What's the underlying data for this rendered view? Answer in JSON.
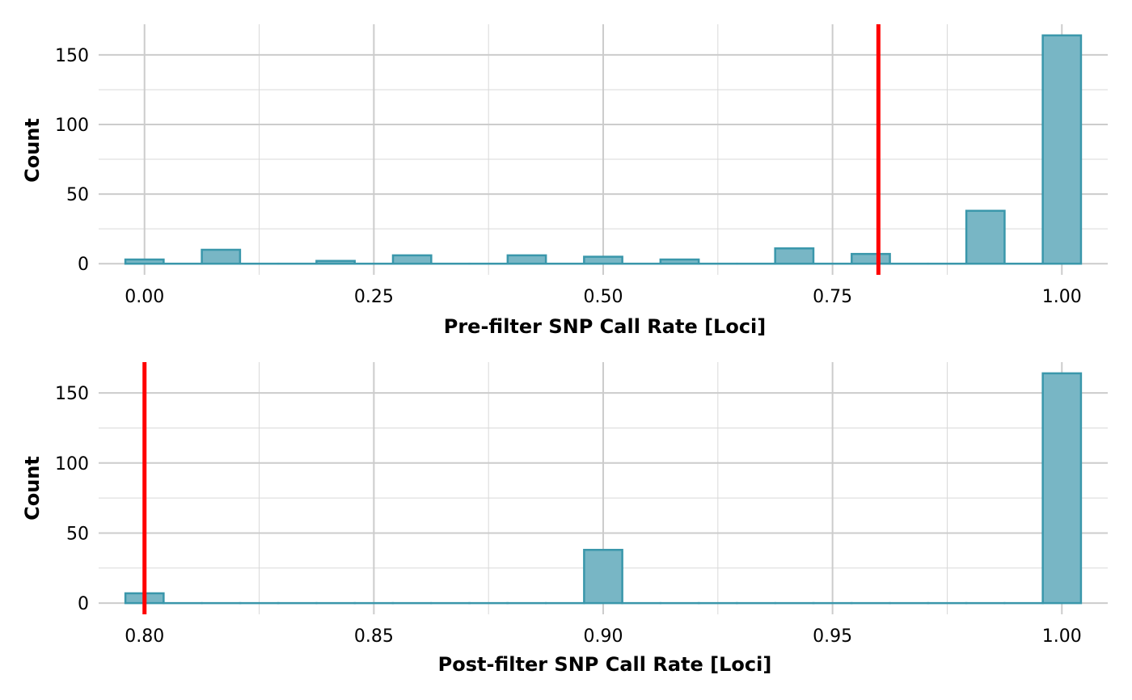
{
  "colors": {
    "bar_fill": "#78b6c5",
    "bar_stroke": "#3a97ab",
    "threshold": "#ff0000",
    "grid_major": "#cccccc",
    "grid_minor": "#d9d9d9"
  },
  "chart_data": [
    {
      "type": "bar",
      "subtype": "histogram",
      "xlabel": "Pre-filter SNP Call Rate [Loci]",
      "ylabel": "Count",
      "xlim": [
        -0.05,
        1.05
      ],
      "ylim": [
        -8,
        172
      ],
      "x_ticks": [
        0.0,
        0.25,
        0.5,
        0.75,
        1.0
      ],
      "x_tick_labels": [
        "0.00",
        "0.25",
        "0.50",
        "0.75",
        "1.00"
      ],
      "x_minor_ticks": [
        0.125,
        0.375,
        0.625,
        0.875
      ],
      "y_ticks": [
        0,
        50,
        100,
        150
      ],
      "y_tick_labels": [
        "0",
        "50",
        "100",
        "150"
      ],
      "y_minor_ticks": [
        25,
        75,
        125
      ],
      "bin_width": 0.0417,
      "bin_centers": [
        0.0,
        0.0417,
        0.0833,
        0.125,
        0.1667,
        0.2083,
        0.25,
        0.2917,
        0.3333,
        0.375,
        0.4167,
        0.4583,
        0.5,
        0.5417,
        0.5833,
        0.625,
        0.6667,
        0.7083,
        0.75,
        0.7917,
        0.8333,
        0.875,
        0.9167,
        0.9583,
        1.0
      ],
      "values": [
        3,
        0,
        10,
        0,
        0,
        2,
        0,
        6,
        0,
        0,
        6,
        0,
        5,
        0,
        3,
        0,
        0,
        11,
        0,
        7,
        0,
        0,
        38,
        0,
        164
      ],
      "threshold": 0.8
    },
    {
      "type": "bar",
      "subtype": "histogram",
      "xlabel": "Post-filter SNP Call Rate [Loci]",
      "ylabel": "Count",
      "xlim": [
        0.79,
        1.01
      ],
      "ylim": [
        -8,
        172
      ],
      "x_ticks": [
        0.8,
        0.85,
        0.9,
        0.95,
        1.0
      ],
      "x_tick_labels": [
        "0.80",
        "0.85",
        "0.90",
        "0.95",
        "1.00"
      ],
      "x_minor_ticks": [
        0.825,
        0.875,
        0.925,
        0.975
      ],
      "y_ticks": [
        0,
        50,
        100,
        150
      ],
      "y_tick_labels": [
        "0",
        "50",
        "100",
        "150"
      ],
      "y_minor_ticks": [
        25,
        75,
        125
      ],
      "bin_width": 0.00833,
      "bin_centers": [
        0.8,
        0.8083,
        0.8167,
        0.825,
        0.8333,
        0.8417,
        0.85,
        0.8583,
        0.8667,
        0.875,
        0.8833,
        0.8917,
        0.9,
        0.9083,
        0.9167,
        0.925,
        0.9333,
        0.9417,
        0.95,
        0.9583,
        0.9667,
        0.975,
        0.9833,
        0.9917,
        1.0
      ],
      "values": [
        7,
        0,
        0,
        0,
        0,
        0,
        0,
        0,
        0,
        0,
        0,
        0,
        38,
        0,
        0,
        0,
        0,
        0,
        0,
        0,
        0,
        0,
        0,
        0,
        164
      ],
      "threshold": 0.8
    }
  ]
}
